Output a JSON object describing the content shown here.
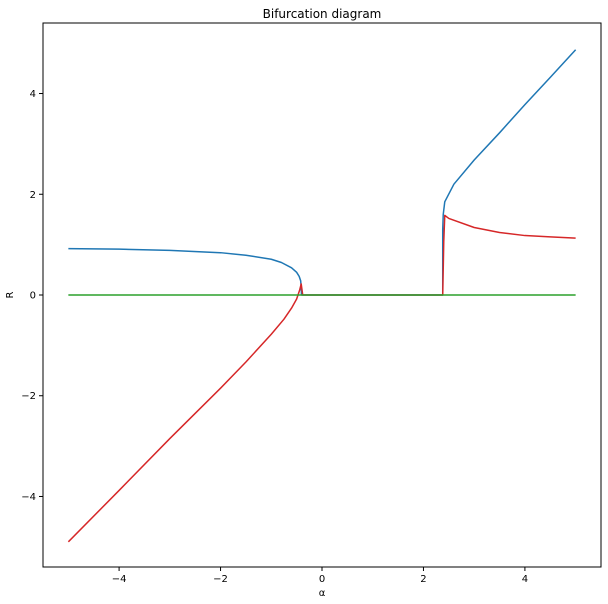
{
  "chart_data": {
    "type": "line",
    "title": "Bifurcation diagram",
    "xlabel": "α",
    "ylabel": "R",
    "xlim": [
      -5.5,
      5.5
    ],
    "ylim": [
      -5.4,
      5.4
    ],
    "xticks": [
      -4,
      -2,
      0,
      2,
      4
    ],
    "yticks": [
      -4,
      -2,
      0,
      2,
      4
    ],
    "xtick_labels": [
      "−4",
      "−2",
      "0",
      "2",
      "4"
    ],
    "ytick_labels": [
      "−4",
      "−2",
      "0",
      "2",
      "4"
    ],
    "grid": false,
    "series": [
      {
        "color": "#1f77b4",
        "points": [
          [
            -5.0,
            0.92
          ],
          [
            -4.0,
            0.91
          ],
          [
            -3.0,
            0.885
          ],
          [
            -2.0,
            0.84
          ],
          [
            -1.5,
            0.79
          ],
          [
            -1.0,
            0.71
          ],
          [
            -0.8,
            0.645
          ],
          [
            -0.6,
            0.54
          ],
          [
            -0.5,
            0.45
          ],
          [
            -0.45,
            0.37
          ],
          [
            -0.42,
            0.28
          ],
          [
            -0.41,
            0.15
          ],
          [
            -0.405,
            0.0
          ],
          [
            2.38,
            0.0
          ],
          [
            2.38,
            1.3
          ],
          [
            2.39,
            1.6
          ],
          [
            2.42,
            1.85
          ],
          [
            2.6,
            2.2
          ],
          [
            3.0,
            2.68
          ],
          [
            3.5,
            3.22
          ],
          [
            4.0,
            3.78
          ],
          [
            4.5,
            4.32
          ],
          [
            5.0,
            4.87
          ]
        ]
      },
      {
        "color": "#d62728",
        "points": [
          [
            -5.0,
            -4.9
          ],
          [
            -4.0,
            -3.88
          ],
          [
            -3.0,
            -2.85
          ],
          [
            -2.0,
            -1.85
          ],
          [
            -1.5,
            -1.33
          ],
          [
            -1.0,
            -0.78
          ],
          [
            -0.75,
            -0.48
          ],
          [
            -0.6,
            -0.26
          ],
          [
            -0.5,
            -0.08
          ],
          [
            -0.44,
            0.1
          ],
          [
            -0.41,
            0.22
          ],
          [
            -0.38,
            0.0
          ],
          [
            2.38,
            0.0
          ],
          [
            2.4,
            1.05
          ],
          [
            2.42,
            1.58
          ],
          [
            2.5,
            1.52
          ],
          [
            3.0,
            1.34
          ],
          [
            3.5,
            1.24
          ],
          [
            4.0,
            1.18
          ],
          [
            4.5,
            1.155
          ],
          [
            5.0,
            1.13
          ]
        ]
      },
      {
        "color": "#2ca02c",
        "points": [
          [
            -5.0,
            0.0
          ],
          [
            5.0,
            0.0
          ]
        ]
      }
    ]
  }
}
